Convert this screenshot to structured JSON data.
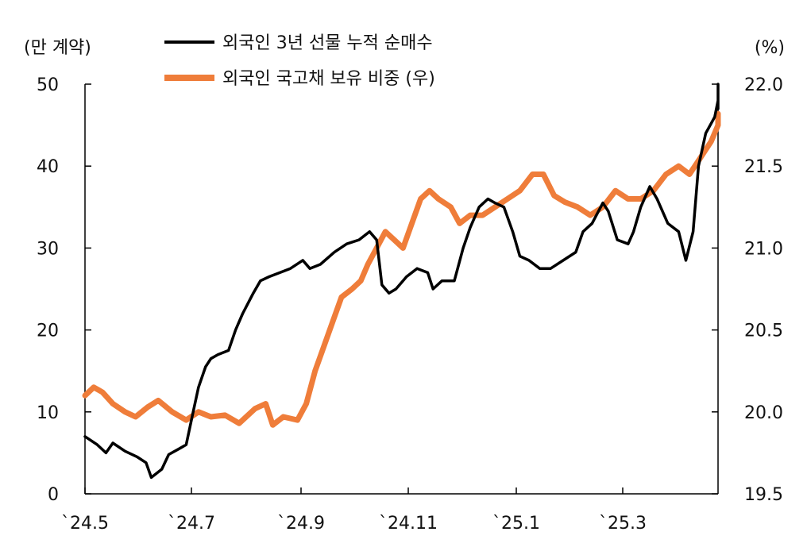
{
  "chart_data": {
    "type": "line",
    "left_unit": "(만 계약)",
    "right_unit": "(%)",
    "x_ticks": [
      "`24.5",
      "`24.7",
      "`24.9",
      "`24.11",
      "`25.1",
      "`25.3"
    ],
    "x_range": [
      "2024-05",
      "2025-04"
    ],
    "y_left": {
      "ylim": [
        0,
        50
      ],
      "ticks": [
        "0",
        "10",
        "20",
        "30",
        "40",
        "50"
      ]
    },
    "y_right": {
      "ylim": [
        19.5,
        22.0
      ],
      "ticks": [
        "19.5",
        "20.0",
        "20.5",
        "21.0",
        "21.5",
        "22.0"
      ]
    },
    "grid": false,
    "legend_position": "top",
    "series": [
      {
        "name": "외국인 3년 선물 누적 순매수",
        "axis": "left",
        "color": "#000000",
        "points": [
          [
            "2024-05-01",
            7.0
          ],
          [
            "2024-05-08",
            6.0
          ],
          [
            "2024-05-13",
            5.0
          ],
          [
            "2024-05-17",
            6.2
          ],
          [
            "2024-05-24",
            5.2
          ],
          [
            "2024-05-31",
            4.5
          ],
          [
            "2024-06-05",
            3.8
          ],
          [
            "2024-06-08",
            2.0
          ],
          [
            "2024-06-14",
            3.0
          ],
          [
            "2024-06-18",
            4.8
          ],
          [
            "2024-06-24",
            5.5
          ],
          [
            "2024-06-28",
            6.0
          ],
          [
            "2024-07-02",
            10.0
          ],
          [
            "2024-07-05",
            13.0
          ],
          [
            "2024-07-09",
            15.5
          ],
          [
            "2024-07-12",
            16.5
          ],
          [
            "2024-07-16",
            17.0
          ],
          [
            "2024-07-22",
            17.5
          ],
          [
            "2024-07-26",
            20.0
          ],
          [
            "2024-07-30",
            22.0
          ],
          [
            "2024-08-05",
            24.5
          ],
          [
            "2024-08-09",
            26.0
          ],
          [
            "2024-08-14",
            26.5
          ],
          [
            "2024-08-20",
            27.0
          ],
          [
            "2024-08-26",
            27.5
          ],
          [
            "2024-09-02",
            28.5
          ],
          [
            "2024-09-06",
            27.5
          ],
          [
            "2024-09-12",
            28.0
          ],
          [
            "2024-09-20",
            29.5
          ],
          [
            "2024-09-27",
            30.5
          ],
          [
            "2024-10-04",
            31.0
          ],
          [
            "2024-10-10",
            32.0
          ],
          [
            "2024-10-14",
            31.0
          ],
          [
            "2024-10-17",
            25.5
          ],
          [
            "2024-10-21",
            24.5
          ],
          [
            "2024-10-25",
            25.0
          ],
          [
            "2024-10-31",
            26.5
          ],
          [
            "2024-11-06",
            27.5
          ],
          [
            "2024-11-12",
            27.0
          ],
          [
            "2024-11-15",
            25.0
          ],
          [
            "2024-11-20",
            26.0
          ],
          [
            "2024-11-27",
            26.0
          ],
          [
            "2024-12-02",
            30.0
          ],
          [
            "2024-12-06",
            32.5
          ],
          [
            "2024-12-11",
            35.0
          ],
          [
            "2024-12-16",
            36.0
          ],
          [
            "2024-12-20",
            35.5
          ],
          [
            "2024-12-25",
            35.0
          ],
          [
            "2024-12-30",
            32.0
          ],
          [
            "2025-01-03",
            29.0
          ],
          [
            "2025-01-08",
            28.5
          ],
          [
            "2025-01-14",
            27.5
          ],
          [
            "2025-01-20",
            27.5
          ],
          [
            "2025-01-27",
            28.5
          ],
          [
            "2025-02-03",
            29.5
          ],
          [
            "2025-02-07",
            32.0
          ],
          [
            "2025-02-12",
            33.0
          ],
          [
            "2025-02-18",
            35.5
          ],
          [
            "2025-02-21",
            34.5
          ],
          [
            "2025-02-26",
            31.0
          ],
          [
            "2025-03-04",
            30.5
          ],
          [
            "2025-03-07",
            32.0
          ],
          [
            "2025-03-11",
            35.0
          ],
          [
            "2025-03-16",
            37.5
          ],
          [
            "2025-03-20",
            36.0
          ],
          [
            "2025-03-26",
            33.0
          ],
          [
            "2025-04-01",
            32.0
          ],
          [
            "2025-04-05",
            28.5
          ],
          [
            "2025-04-09",
            32.0
          ],
          [
            "2025-04-12",
            40.0
          ],
          [
            "2025-04-16",
            44.0
          ],
          [
            "2025-04-21",
            46.0
          ],
          [
            "2025-04-26",
            48.0
          ],
          [
            "2025-04-30",
            50.0
          ],
          [
            "2025-05-02",
            47.0
          ]
        ]
      },
      {
        "name": "외국인 국고채 보유 비중 (우)",
        "axis": "right",
        "color": "#ef7d3a",
        "points": [
          [
            "2024-05-01",
            20.1
          ],
          [
            "2024-05-06",
            20.15
          ],
          [
            "2024-05-11",
            20.12
          ],
          [
            "2024-05-17",
            20.05
          ],
          [
            "2024-05-24",
            20.0
          ],
          [
            "2024-05-30",
            19.97
          ],
          [
            "2024-06-06",
            20.03
          ],
          [
            "2024-06-12",
            20.07
          ],
          [
            "2024-06-20",
            20.0
          ],
          [
            "2024-06-28",
            19.95
          ],
          [
            "2024-07-05",
            20.0
          ],
          [
            "2024-07-12",
            19.97
          ],
          [
            "2024-07-20",
            19.98
          ],
          [
            "2024-07-28",
            19.93
          ],
          [
            "2024-08-06",
            20.02
          ],
          [
            "2024-08-12",
            20.05
          ],
          [
            "2024-08-16",
            19.92
          ],
          [
            "2024-08-22",
            19.97
          ],
          [
            "2024-08-30",
            19.95
          ],
          [
            "2024-09-04",
            20.05
          ],
          [
            "2024-09-09",
            20.25
          ],
          [
            "2024-09-14",
            20.4
          ],
          [
            "2024-09-19",
            20.55
          ],
          [
            "2024-09-24",
            20.7
          ],
          [
            "2024-09-30",
            20.75
          ],
          [
            "2024-10-05",
            20.8
          ],
          [
            "2024-10-09",
            20.9
          ],
          [
            "2024-10-14",
            21.0
          ],
          [
            "2024-10-19",
            21.1
          ],
          [
            "2024-10-24",
            21.05
          ],
          [
            "2024-10-29",
            21.0
          ],
          [
            "2024-11-03",
            21.15
          ],
          [
            "2024-11-08",
            21.3
          ],
          [
            "2024-11-13",
            21.35
          ],
          [
            "2024-11-18",
            21.3
          ],
          [
            "2024-11-25",
            21.25
          ],
          [
            "2024-11-30",
            21.15
          ],
          [
            "2024-12-06",
            21.2
          ],
          [
            "2024-12-13",
            21.2
          ],
          [
            "2024-12-20",
            21.25
          ],
          [
            "2024-12-27",
            21.3
          ],
          [
            "2025-01-03",
            21.35
          ],
          [
            "2025-01-10",
            21.45
          ],
          [
            "2025-01-16",
            21.45
          ],
          [
            "2025-01-22",
            21.32
          ],
          [
            "2025-01-28",
            21.28
          ],
          [
            "2025-02-04",
            21.25
          ],
          [
            "2025-02-11",
            21.2
          ],
          [
            "2025-02-18",
            21.25
          ],
          [
            "2025-02-25",
            21.35
          ],
          [
            "2025-03-04",
            21.3
          ],
          [
            "2025-03-11",
            21.3
          ],
          [
            "2025-03-18",
            21.35
          ],
          [
            "2025-03-25",
            21.45
          ],
          [
            "2025-04-01",
            21.5
          ],
          [
            "2025-04-07",
            21.45
          ],
          [
            "2025-04-13",
            21.55
          ],
          [
            "2025-04-19",
            21.65
          ],
          [
            "2025-04-25",
            21.75
          ],
          [
            "2025-05-01",
            21.82
          ]
        ]
      }
    ]
  }
}
